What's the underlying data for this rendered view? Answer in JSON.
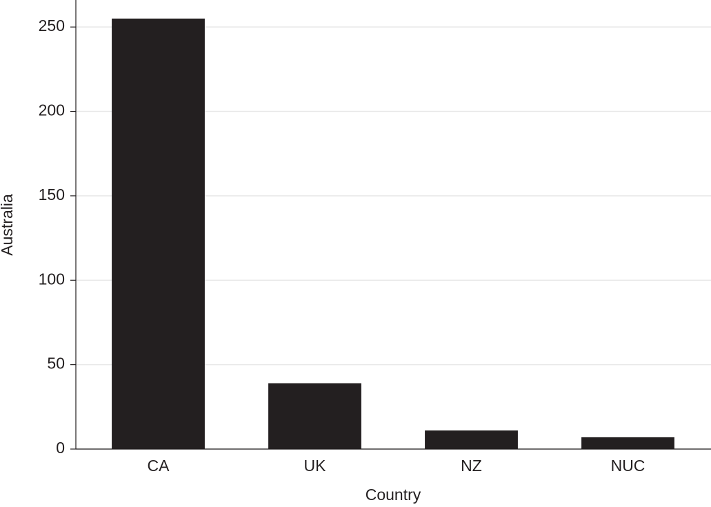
{
  "chart_data": {
    "type": "bar",
    "x_label": "Country",
    "y_label": "Australia",
    "categories": [
      "CA",
      "UK",
      "NZ",
      "NUC"
    ],
    "values": [
      255,
      39,
      11,
      7
    ],
    "color": "#231f20",
    "ylim": [
      0,
      266
    ],
    "yticks": [
      0,
      50,
      100,
      150,
      200,
      250
    ],
    "grid": true
  }
}
